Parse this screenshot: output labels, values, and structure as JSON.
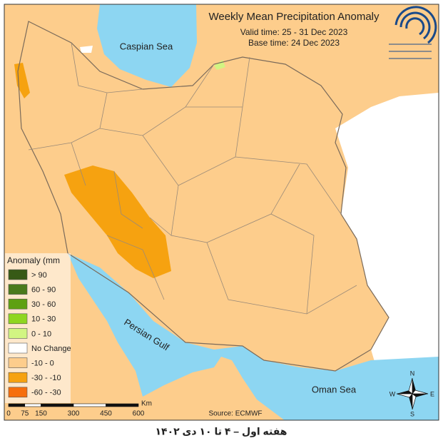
{
  "header": {
    "title": "Weekly Mean Precipitation Anomaly",
    "valid_time": "Valid time: 25 - 31 Dec 2023",
    "base_time": "Base time: 24 Dec 2023"
  },
  "seas": {
    "caspian": "Caspian Sea",
    "gulf": "Persian Gulf",
    "oman": "Oman Sea"
  },
  "legend": {
    "title": "Anomaly (mm",
    "items": [
      {
        "label": "> 90",
        "color": "#375a16"
      },
      {
        "label": "60 - 90",
        "color": "#4a7a1c"
      },
      {
        "label": "30 - 60",
        "color": "#5ea012"
      },
      {
        "label": "10 - 30",
        "color": "#8fd620"
      },
      {
        "label": "0 - 10",
        "color": "#d2f582"
      },
      {
        "label": "No Change",
        "color": "#ffffff"
      },
      {
        "label": "-10 - 0",
        "color": "#fdcd8c"
      },
      {
        "label": "-30 - -10",
        "color": "#f6a210"
      },
      {
        "label": "-60 - -30",
        "color": "#f66e0c"
      }
    ]
  },
  "scale": {
    "ticks": [
      0,
      75,
      150,
      300,
      450,
      600
    ],
    "unit": "Km"
  },
  "source": "Source: ECMWF",
  "compass": {
    "n": "N",
    "s": "S",
    "e": "E",
    "w": "W"
  },
  "footer": "هفته اول – ۴ تا ۱۰ دی ۱۴۰۲"
}
